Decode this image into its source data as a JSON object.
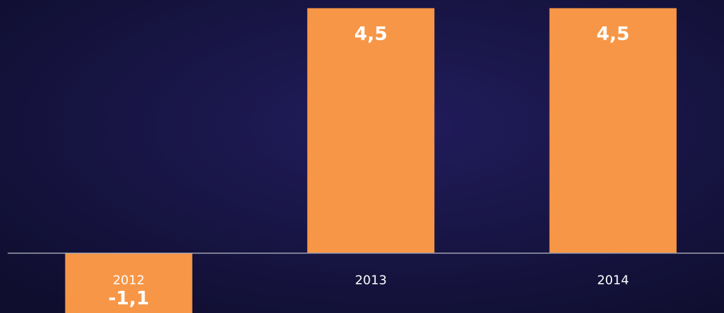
{
  "chart_data": {
    "type": "bar",
    "categories": [
      "2012",
      "2013",
      "2014"
    ],
    "values": [
      -1.1,
      4.5,
      4.5
    ],
    "value_labels": [
      "-1,1",
      "4,5",
      "4,5"
    ],
    "color": "#f79646",
    "ylim": [
      -1.1,
      4.65
    ]
  }
}
